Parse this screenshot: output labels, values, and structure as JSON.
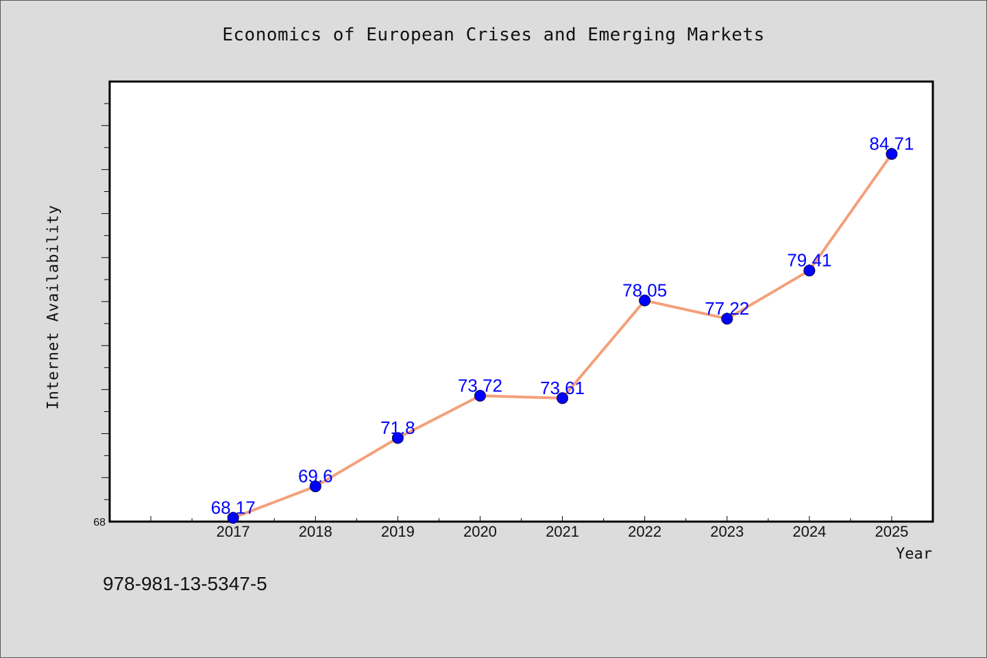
{
  "chart_data": {
    "type": "line",
    "title": "Economics of European Crises and Emerging Markets",
    "xlabel": "Year",
    "ylabel": "Internet Availability",
    "categories": [
      "2017",
      "2018",
      "2019",
      "2020",
      "2021",
      "2022",
      "2023",
      "2024",
      "2025"
    ],
    "x": [
      2017,
      2018,
      2019,
      2020,
      2021,
      2022,
      2023,
      2024,
      2025
    ],
    "series": [
      {
        "values": [
          68.17,
          69.6,
          71.8,
          73.72,
          73.61,
          78.05,
          77.22,
          79.41,
          84.71
        ],
        "labels": [
          "68.17",
          "69.6",
          "71.8",
          "73.72",
          "73.61",
          "78.05",
          "77.22",
          "79.41",
          "84.71"
        ],
        "color": "#f4a07a",
        "marker_color": "#0000ff"
      }
    ],
    "xlim": [
      2015.5,
      2025.5
    ],
    "ylim": [
      68,
      88
    ],
    "yticks": [
      "68"
    ],
    "grid": false,
    "label_color": "#0000ff"
  },
  "footer": {
    "code": "978-981-13-5347-5"
  },
  "colors": {
    "background": "#dcdcdc",
    "plot_background": "#ffffff"
  }
}
